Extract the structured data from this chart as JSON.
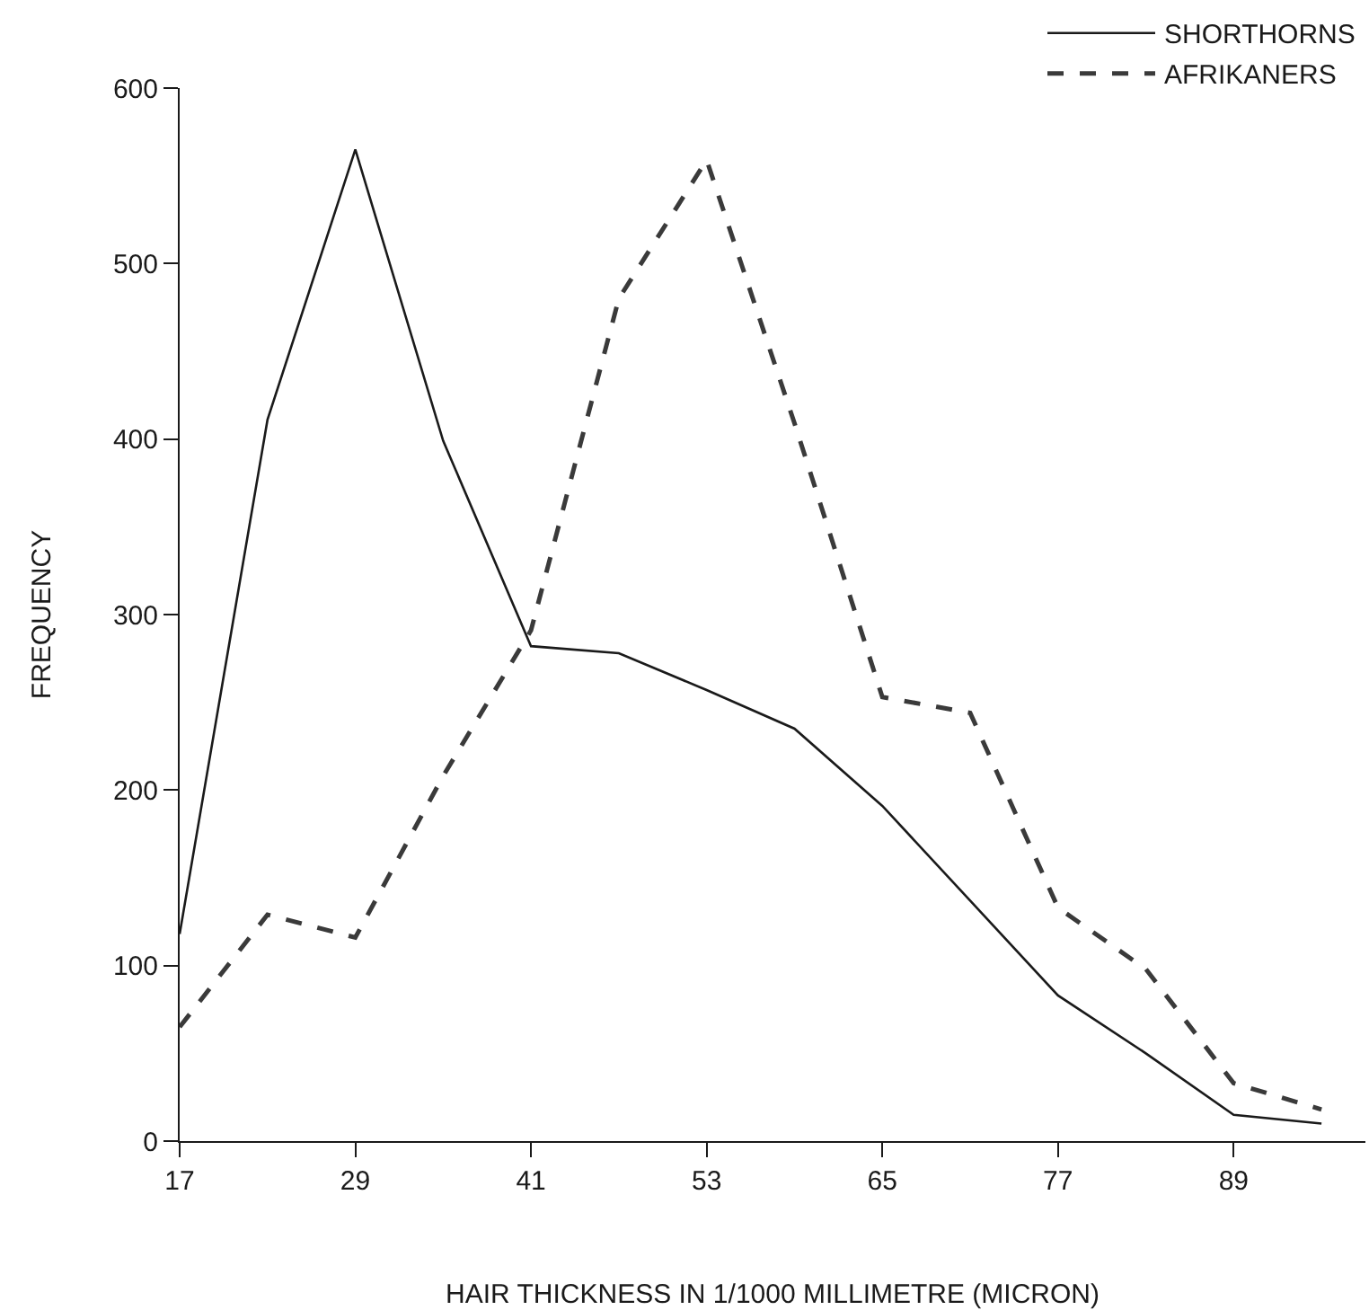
{
  "chart_data": {
    "type": "line",
    "xlabel": "HAIR THICKNESS IN 1/1000 MILLIMETRE (MICRON)",
    "ylabel": "FREQUENCY",
    "x": [
      17,
      23,
      29,
      35,
      41,
      47,
      53,
      59,
      65,
      71,
      77,
      83,
      89,
      95
    ],
    "series": [
      {
        "name": "SHORTHORNS",
        "color": "#1a1a1a",
        "line_style": "solid",
        "values": [
          118,
          411,
          565,
          399,
          282,
          278,
          257,
          235,
          191,
          137,
          83,
          50,
          15,
          10
        ]
      },
      {
        "name": "AFRIKANERS",
        "color": "#3a3a3a",
        "line_style": "dashed",
        "values": [
          65,
          129,
          116,
          208,
          291,
          480,
          559,
          409,
          253,
          244,
          133,
          98,
          33,
          18
        ]
      }
    ],
    "xlim": [
      17,
      98
    ],
    "ylim": [
      0,
      600
    ],
    "xticks": [
      17,
      29,
      41,
      53,
      65,
      77,
      89
    ],
    "yticks": [
      0,
      100,
      200,
      300,
      400,
      500,
      600
    ],
    "legend": "top right",
    "marker": "none"
  }
}
